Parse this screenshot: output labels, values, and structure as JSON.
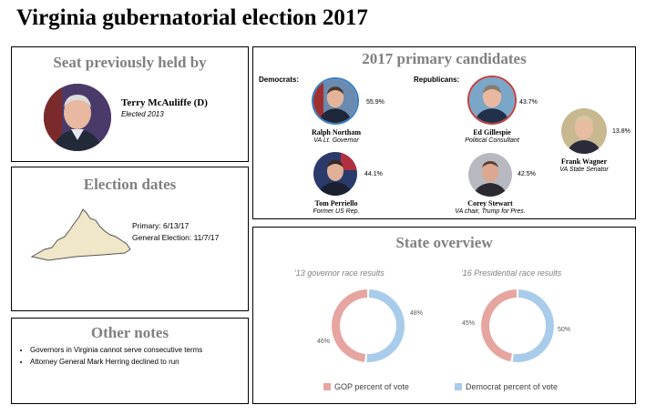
{
  "title": "Virginia gubernatorial election 2017",
  "seat": {
    "heading": "Seat previously held by",
    "name": "Terry McAuliffe (D)",
    "subtitle": "Elected 2013"
  },
  "dates": {
    "heading": "Election dates",
    "primary": "Primary: 6/13/17",
    "general": "General Election: 11/7/17"
  },
  "notes": {
    "heading": "Other notes",
    "items": [
      "Governors in Virginia cannot serve consecutive terms",
      "Attorney General Mark Herring declined to run"
    ]
  },
  "candidates": {
    "heading": "2017 primary candidates",
    "democrats_label": "Democrats:",
    "republicans_label": "Republicans:",
    "list": [
      {
        "name": "Ralph Northam",
        "role": "VA Lt. Governor",
        "pct": "55.9%",
        "party": "D"
      },
      {
        "name": "Tom Perriello",
        "role": "Former US Rep.",
        "pct": "44.1%",
        "party": "D"
      },
      {
        "name": "Ed Gillespie",
        "role": "Political Consultant",
        "pct": "43.7%",
        "party": "R"
      },
      {
        "name": "Corey Stewart",
        "role": "VA chair, Trump for Pres.",
        "pct": "42.5%",
        "party": "R"
      },
      {
        "name": "Frank Wagner",
        "role": "VA State Senator",
        "pct": "13.8%",
        "party": "R"
      }
    ]
  },
  "state": {
    "heading": "State overview",
    "gop_color": "#E6A5A0",
    "dem_color": "#A9CCEB",
    "legend_gop": "GOP percent of vote",
    "legend_dem": "Democrat percent of vote"
  },
  "chart_data": [
    {
      "type": "pie",
      "title": "'13 governor race results",
      "categories": [
        "GOP percent of vote",
        "Democrat percent of vote"
      ],
      "values": [
        46,
        48
      ],
      "labels": [
        "46%",
        "48%"
      ]
    },
    {
      "type": "pie",
      "title": "'16 Presidential race results",
      "categories": [
        "GOP percent of vote",
        "Democrat percent of vote"
      ],
      "values": [
        45,
        50
      ],
      "labels": [
        "45%",
        "50%"
      ]
    }
  ]
}
